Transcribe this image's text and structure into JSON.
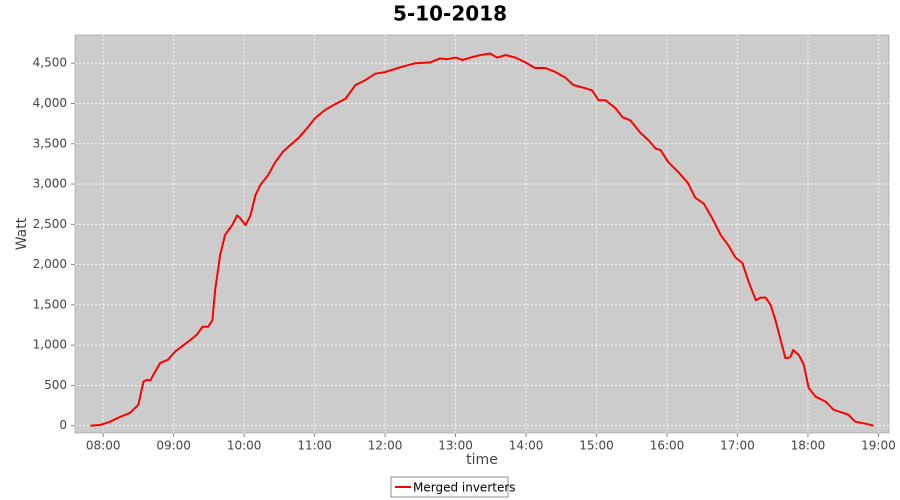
{
  "chart_data": {
    "type": "line",
    "title": "5-10-2018",
    "x_label": "time",
    "y_label": "Watt",
    "legend": "bottom",
    "grid": true,
    "xlim": [
      7.6,
      19.15
    ],
    "ylim": [
      -90,
      4850
    ],
    "xticks": [
      {
        "value": 8,
        "label": "08:00"
      },
      {
        "value": 9,
        "label": "09:00"
      },
      {
        "value": 10,
        "label": "10:00"
      },
      {
        "value": 11,
        "label": "11:00"
      },
      {
        "value": 12,
        "label": "12:00"
      },
      {
        "value": 13,
        "label": "13:00"
      },
      {
        "value": 14,
        "label": "14:00"
      },
      {
        "value": 15,
        "label": "15:00"
      },
      {
        "value": 16,
        "label": "16:00"
      },
      {
        "value": 17,
        "label": "17:00"
      },
      {
        "value": 18,
        "label": "18:00"
      },
      {
        "value": 19,
        "label": "19:00"
      }
    ],
    "yticks": [
      0,
      500,
      {
        "value": 1000,
        "label": "1,000"
      },
      {
        "value": 1500,
        "label": "1,500"
      },
      {
        "value": 2000,
        "label": "2,000"
      },
      {
        "value": 2500,
        "label": "2,500"
      },
      {
        "value": 3000,
        "label": "3,000"
      },
      {
        "value": 3500,
        "label": "3,500"
      },
      {
        "value": 4000,
        "label": "4,000"
      },
      {
        "value": 4500,
        "label": "4,500"
      }
    ],
    "x": [
      7.82,
      7.96,
      8.1,
      8.24,
      8.38,
      8.5,
      8.57,
      8.62,
      8.67,
      8.71,
      8.81,
      8.92,
      9.02,
      9.14,
      9.23,
      9.33,
      9.41,
      9.49,
      9.55,
      9.59,
      9.66,
      9.73,
      9.83,
      9.9,
      9.94,
      10.02,
      10.09,
      10.16,
      10.23,
      10.34,
      10.44,
      10.55,
      10.65,
      10.77,
      10.87,
      11.01,
      11.15,
      11.29,
      11.44,
      11.58,
      11.72,
      11.86,
      12.0,
      12.22,
      12.43,
      12.64,
      12.78,
      12.88,
      13.0,
      13.1,
      13.21,
      13.35,
      13.49,
      13.59,
      13.71,
      13.85,
      13.99,
      14.13,
      14.27,
      14.42,
      14.56,
      14.67,
      14.84,
      14.94,
      15.03,
      15.13,
      15.27,
      15.37,
      15.48,
      15.62,
      15.74,
      15.84,
      15.91,
      16.02,
      16.16,
      16.3,
      16.4,
      16.52,
      16.64,
      16.76,
      16.87,
      16.97,
      17.07,
      17.16,
      17.26,
      17.33,
      17.4,
      17.47,
      17.54,
      17.61,
      17.68,
      17.75,
      17.79,
      17.87,
      17.94,
      18.01,
      18.11,
      18.25,
      18.36,
      18.46,
      18.57,
      18.67,
      18.82,
      18.93
    ],
    "series": [
      {
        "name": "Merged inverters",
        "color": "#ff0000",
        "values": [
          0,
          10,
          50,
          110,
          160,
          260,
          545,
          570,
          560,
          630,
          780,
          820,
          920,
          1000,
          1060,
          1130,
          1230,
          1230,
          1310,
          1690,
          2120,
          2370,
          2490,
          2610,
          2580,
          2490,
          2610,
          2860,
          2990,
          3110,
          3270,
          3400,
          3480,
          3570,
          3670,
          3820,
          3920,
          3990,
          4060,
          4230,
          4290,
          4370,
          4390,
          4450,
          4500,
          4510,
          4560,
          4550,
          4570,
          4540,
          4570,
          4600,
          4620,
          4570,
          4600,
          4570,
          4510,
          4440,
          4440,
          4390,
          4320,
          4230,
          4190,
          4160,
          4040,
          4040,
          3940,
          3830,
          3790,
          3640,
          3540,
          3440,
          3420,
          3270,
          3150,
          3010,
          2830,
          2760,
          2580,
          2370,
          2240,
          2090,
          2020,
          1780,
          1560,
          1590,
          1590,
          1500,
          1310,
          1070,
          840,
          850,
          940,
          880,
          760,
          470,
          360,
          300,
          200,
          170,
          140,
          50,
          25,
          0
        ]
      }
    ]
  }
}
